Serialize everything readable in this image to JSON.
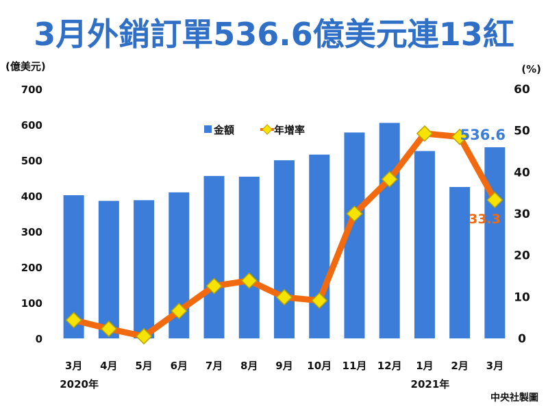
{
  "colors": {
    "title": "#2f6fc6",
    "bar": "#3b7dd8",
    "line": "#f26a0f",
    "marker": "#f6e400",
    "bar_label": "#3b7dd8",
    "line_label": "#f26a0f"
  },
  "chart_data": {
    "type": "bar+line",
    "title": "3月外銷訂單536.6億美元連13紅",
    "categories": [
      "3月",
      "4月",
      "5月",
      "6月",
      "7月",
      "8月",
      "9月",
      "10月",
      "11月",
      "12月",
      "1月",
      "2月",
      "3月"
    ],
    "year_labels": [
      {
        "label": "2020年",
        "category_index": 0
      },
      {
        "label": "2021年",
        "category_index": 10
      }
    ],
    "left_axis": {
      "label": "(億美元)",
      "range": [
        0,
        700
      ],
      "ticks": [
        0,
        100,
        200,
        300,
        400,
        500,
        600,
        700
      ]
    },
    "right_axis": {
      "label": "(%)",
      "range": [
        0,
        60
      ],
      "ticks": [
        0,
        10,
        20,
        30,
        40,
        50,
        60
      ]
    },
    "legend_position": "top-center",
    "series": [
      {
        "name": "金額",
        "type": "bar",
        "axis": "left",
        "values": [
          402,
          386,
          388,
          410,
          456,
          454,
          500,
          516,
          578,
          605,
          526,
          425,
          536.6
        ]
      },
      {
        "name": "年增率",
        "type": "line",
        "axis": "right",
        "values": [
          4.4,
          2.3,
          0.5,
          6.6,
          12.6,
          13.9,
          9.9,
          9.1,
          30,
          38.3,
          49.3,
          48.5,
          33.3
        ]
      }
    ],
    "annotations": [
      {
        "text": "536.6",
        "series": "金額",
        "index": 12
      },
      {
        "text": "33.3",
        "series": "年增率",
        "index": 12
      }
    ]
  },
  "credit": "中央社製圖"
}
